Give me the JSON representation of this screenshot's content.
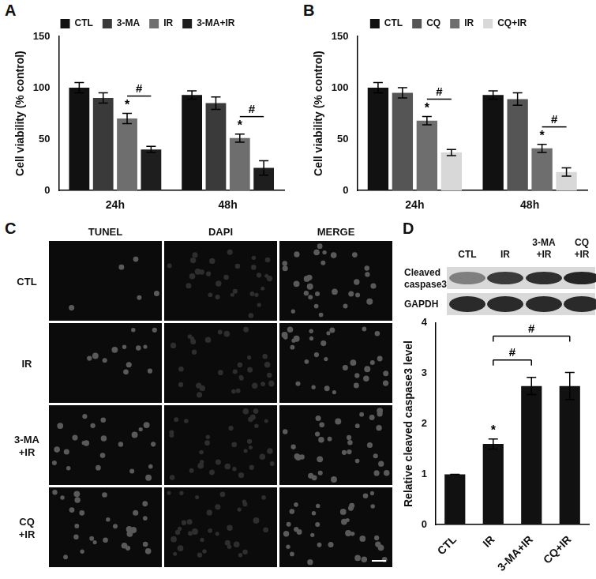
{
  "chart_data": [
    {
      "panel_label": "A",
      "type": "bar",
      "categories": [
        "24h",
        "48h"
      ],
      "ylabel": "Cell viability (% control)",
      "ylim": [
        0,
        150
      ],
      "yticks": [
        0,
        50,
        100,
        150
      ],
      "grid": false,
      "legend": "top",
      "series": [
        {
          "name": "CTL",
          "color": "#111111",
          "values": [
            100,
            93
          ],
          "errors": [
            5,
            4
          ]
        },
        {
          "name": "3-MA",
          "color": "#3a3a3a",
          "values": [
            90,
            85
          ],
          "errors": [
            5,
            6
          ]
        },
        {
          "name": "IR",
          "color": "#6e6e6e",
          "values": [
            70,
            51
          ],
          "errors": [
            5,
            4
          ]
        },
        {
          "name": "3-MA+IR",
          "color": "#1e1e1e",
          "values": [
            40,
            22
          ],
          "errors": [
            3,
            7
          ]
        }
      ],
      "annotations": [
        {
          "text": "*",
          "category": "24h",
          "series": "IR"
        },
        {
          "text": "*",
          "category": "48h",
          "series": "IR"
        },
        {
          "text": "#",
          "category": "24h",
          "from": "IR",
          "to": "3-MA+IR"
        },
        {
          "text": "#",
          "category": "48h",
          "from": "IR",
          "to": "3-MA+IR"
        }
      ]
    },
    {
      "panel_label": "B",
      "type": "bar",
      "categories": [
        "24h",
        "48h"
      ],
      "ylabel": "Cell viability (% control)",
      "ylim": [
        0,
        150
      ],
      "yticks": [
        0,
        50,
        100,
        150
      ],
      "grid": false,
      "legend": "top",
      "series": [
        {
          "name": "CTL",
          "color": "#111111",
          "values": [
            100,
            93
          ],
          "errors": [
            5,
            4
          ]
        },
        {
          "name": "CQ",
          "color": "#555555",
          "values": [
            95,
            89
          ],
          "errors": [
            5,
            6
          ]
        },
        {
          "name": "IR",
          "color": "#6e6e6e",
          "values": [
            68,
            41
          ],
          "errors": [
            4,
            4
          ]
        },
        {
          "name": "CQ+IR",
          "color": "#d8d8d8",
          "values": [
            37,
            18
          ],
          "errors": [
            3,
            4
          ]
        }
      ],
      "annotations": [
        {
          "text": "*",
          "category": "24h",
          "series": "IR"
        },
        {
          "text": "*",
          "category": "48h",
          "series": "IR"
        },
        {
          "text": "#",
          "category": "24h",
          "from": "IR",
          "to": "CQ+IR"
        },
        {
          "text": "#",
          "category": "48h",
          "from": "IR",
          "to": "CQ+IR"
        }
      ]
    },
    {
      "panel_label": "D",
      "type": "bar",
      "categories": [
        "CTL",
        "IR",
        "3-MA+IR",
        "CQ+IR"
      ],
      "values": [
        1,
        1.6,
        2.75,
        2.75
      ],
      "errors": [
        0,
        0.1,
        0.17,
        0.27
      ],
      "color": "#111111",
      "ylabel": "Relative cleaved caspase3 level",
      "ylim": [
        0,
        4
      ],
      "yticks": [
        0,
        1,
        2,
        3,
        4
      ],
      "grid": false,
      "annotations": [
        {
          "text": "*",
          "category": "IR"
        },
        {
          "text": "#",
          "from": "IR",
          "to": "3-MA+IR"
        },
        {
          "text": "#",
          "from": "IR",
          "to": "CQ+IR"
        }
      ]
    }
  ],
  "images": {
    "panel_label": "C",
    "columns": [
      "TUNEL",
      "DAPI",
      "MERGE"
    ],
    "rows": [
      "CTL",
      "IR",
      "3-MA\n+IR",
      "CQ\n+IR"
    ]
  },
  "blot": {
    "bands": [
      "Cleaved\ncaspase3",
      "GAPDH"
    ],
    "lanes": [
      "CTL",
      "IR",
      "3-MA\n+IR",
      "CQ\n+IR"
    ]
  }
}
